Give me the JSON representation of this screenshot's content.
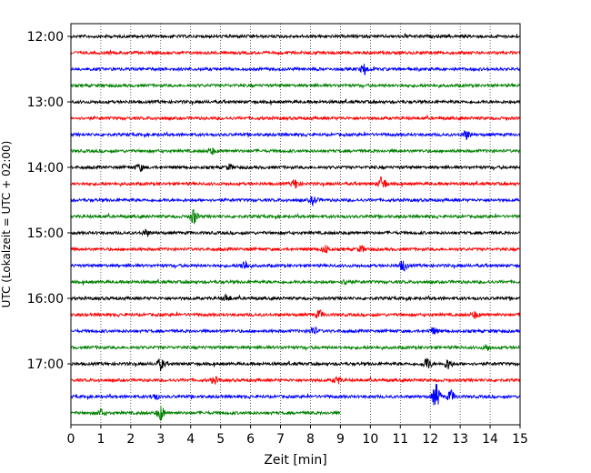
{
  "chart_data": {
    "type": "line",
    "subtype": "helicorder",
    "xlabel": "Zeit  [min]",
    "ylabel": "UTC (Lokalzeit = UTC + 02:00)",
    "xlim": [
      0,
      15
    ],
    "x_ticks": [
      0,
      1,
      2,
      3,
      4,
      5,
      6,
      7,
      8,
      9,
      10,
      11,
      12,
      13,
      14,
      15
    ],
    "y_tick_labels": [
      "12:00",
      "13:00",
      "14:00",
      "15:00",
      "16:00",
      "17:00"
    ],
    "grid": "vertical dotted at each minute",
    "trace_interval_min": 15,
    "trace_colors": [
      "#000000",
      "#ff0000",
      "#0000ff",
      "#008000"
    ],
    "traces": [
      {
        "start": "12:00",
        "end_min": 15,
        "events": []
      },
      {
        "start": "12:15",
        "end_min": 15,
        "events": []
      },
      {
        "start": "12:30",
        "end_min": 15,
        "events": [
          {
            "t": 9.8,
            "amp": 2.5
          }
        ]
      },
      {
        "start": "12:45",
        "end_min": 15,
        "events": []
      },
      {
        "start": "13:00",
        "end_min": 15,
        "events": []
      },
      {
        "start": "13:15",
        "end_min": 15,
        "events": []
      },
      {
        "start": "13:30",
        "end_min": 15,
        "events": [
          {
            "t": 13.2,
            "amp": 2.0
          }
        ]
      },
      {
        "start": "13:45",
        "end_min": 15,
        "events": [
          {
            "t": 4.7,
            "amp": 1.5
          }
        ]
      },
      {
        "start": "14:00",
        "end_min": 15,
        "events": [
          {
            "t": 2.3,
            "amp": 1.5
          },
          {
            "t": 5.3,
            "amp": 1.2
          }
        ]
      },
      {
        "start": "14:15",
        "end_min": 15,
        "events": [
          {
            "t": 7.5,
            "amp": 2.2
          },
          {
            "t": 10.4,
            "amp": 3.5
          }
        ]
      },
      {
        "start": "14:30",
        "end_min": 15,
        "events": [
          {
            "t": 8.1,
            "amp": 2.0
          }
        ]
      },
      {
        "start": "14:45",
        "end_min": 15,
        "events": [
          {
            "t": 4.1,
            "amp": 3.5
          }
        ]
      },
      {
        "start": "15:00",
        "end_min": 15,
        "events": [
          {
            "t": 2.5,
            "amp": 1.3
          }
        ]
      },
      {
        "start": "15:15",
        "end_min": 15,
        "events": [
          {
            "t": 8.5,
            "amp": 1.8
          },
          {
            "t": 9.7,
            "amp": 1.5
          }
        ]
      },
      {
        "start": "15:30",
        "end_min": 15,
        "events": [
          {
            "t": 5.8,
            "amp": 2.5
          },
          {
            "t": 11.1,
            "amp": 2.5
          }
        ]
      },
      {
        "start": "15:45",
        "end_min": 15,
        "events": [
          {
            "t": 9.2,
            "amp": 1.3
          }
        ]
      },
      {
        "start": "16:00",
        "end_min": 15,
        "events": [
          {
            "t": 5.2,
            "amp": 1.5
          }
        ]
      },
      {
        "start": "16:15",
        "end_min": 15,
        "events": [
          {
            "t": 8.3,
            "amp": 2.0
          },
          {
            "t": 13.5,
            "amp": 1.5
          }
        ]
      },
      {
        "start": "16:30",
        "end_min": 15,
        "events": [
          {
            "t": 8.1,
            "amp": 2.0
          },
          {
            "t": 12.1,
            "amp": 1.5
          }
        ]
      },
      {
        "start": "16:45",
        "end_min": 15,
        "events": [
          {
            "t": 13.9,
            "amp": 1.5
          }
        ]
      },
      {
        "start": "17:00",
        "end_min": 15,
        "events": [
          {
            "t": 3.0,
            "amp": 2.5
          },
          {
            "t": 11.9,
            "amp": 3.0
          },
          {
            "t": 12.6,
            "amp": 2.5
          }
        ]
      },
      {
        "start": "17:15",
        "end_min": 15,
        "events": [
          {
            "t": 4.8,
            "amp": 1.5
          },
          {
            "t": 8.9,
            "amp": 1.5
          }
        ]
      },
      {
        "start": "17:30",
        "end_min": 15,
        "events": [
          {
            "t": 12.2,
            "amp": 6.0
          },
          {
            "t": 12.7,
            "amp": 3.0
          },
          {
            "t": 2.8,
            "amp": 1.5
          }
        ]
      },
      {
        "start": "17:45",
        "end_min": 9.0,
        "events": [
          {
            "t": 3.0,
            "amp": 3.5
          },
          {
            "t": 1.0,
            "amp": 1.5
          }
        ]
      }
    ]
  }
}
